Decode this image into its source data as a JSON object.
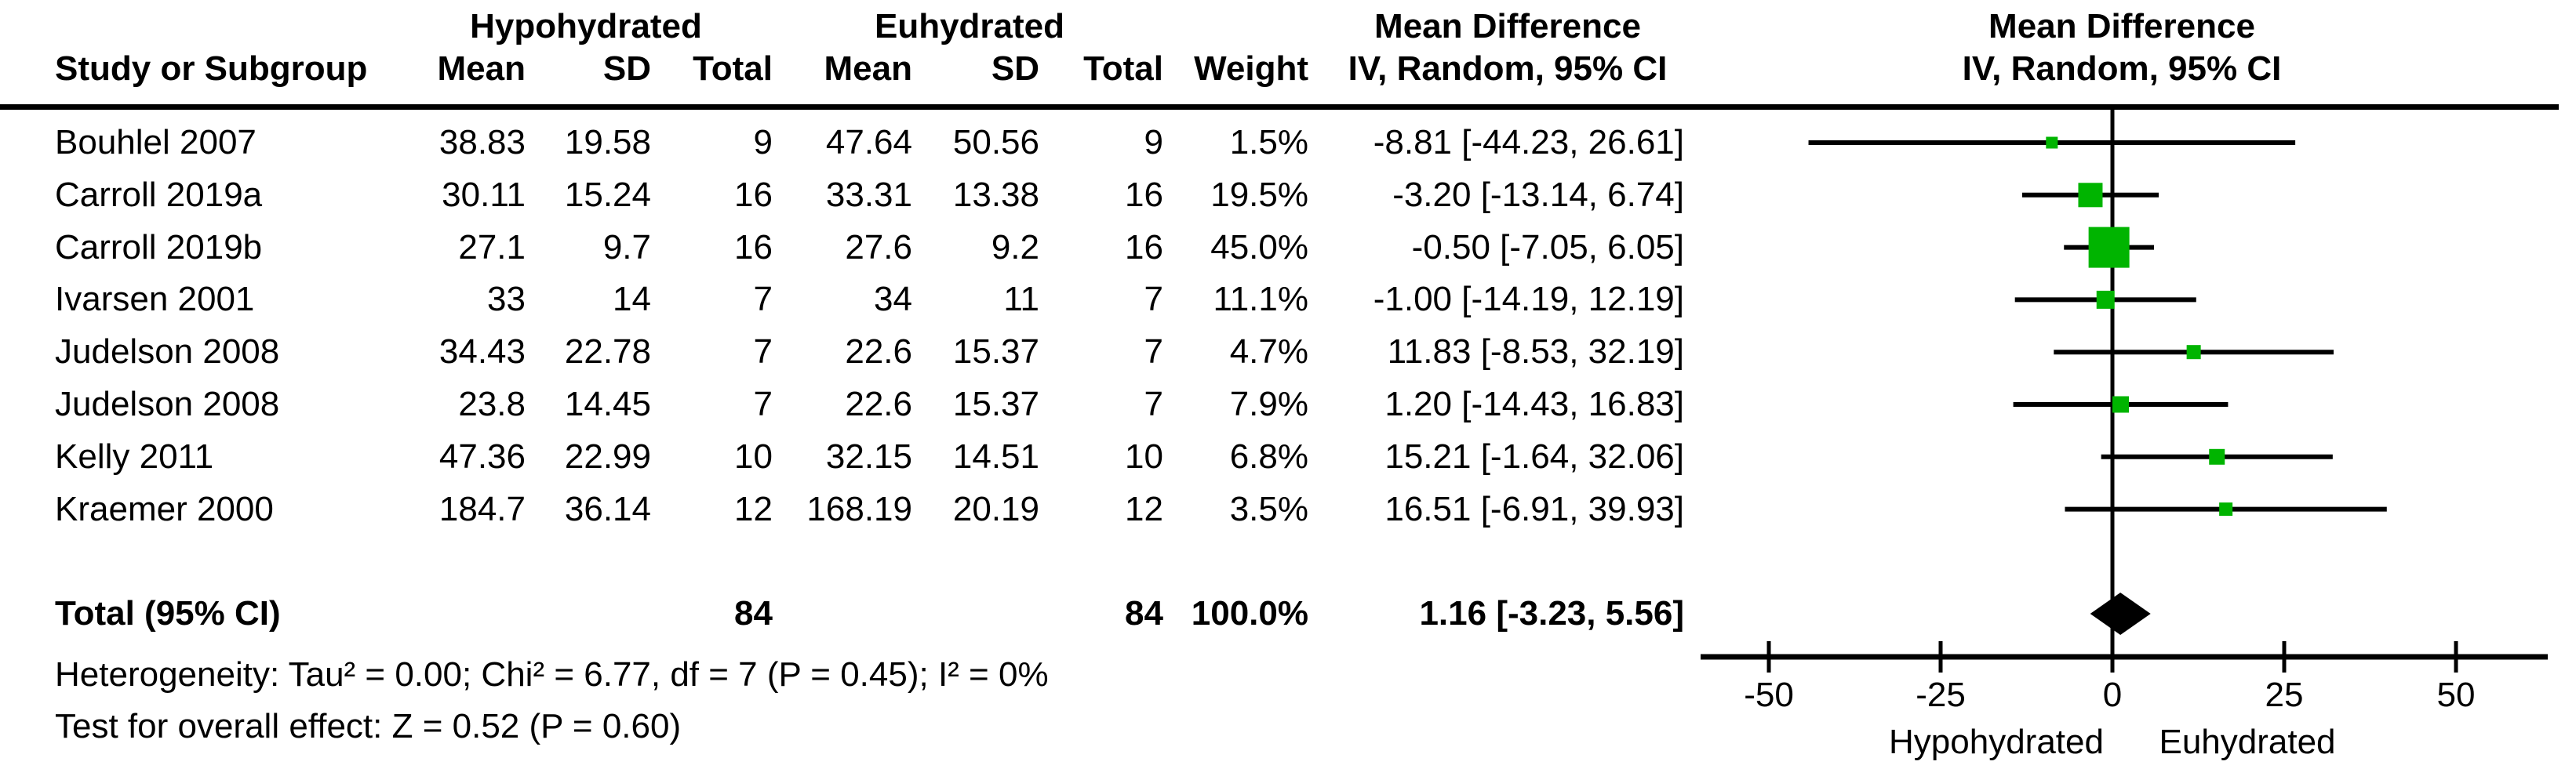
{
  "chart_data": {
    "type": "forest",
    "title_columns": {
      "group1": "Hypohydrated",
      "group2": "Euhydrated",
      "md_col_title": "Mean Difference",
      "md_col_subtitle": "IV, Random, 95% CI",
      "plot_title": "Mean Difference",
      "plot_subtitle": "IV, Random, 95% CI",
      "study": "Study or Subgroup",
      "mean": "Mean",
      "sd": "SD",
      "total": "Total",
      "weight": "Weight"
    },
    "studies": [
      {
        "name": "Bouhlel 2007",
        "h_mean": "38.83",
        "h_sd": "19.58",
        "h_total": "9",
        "e_mean": "47.64",
        "e_sd": "50.56",
        "e_total": "9",
        "weight": "1.5%",
        "md_text": "-8.81 [-44.23, 26.61]",
        "est": -8.81,
        "lo": -44.23,
        "hi": 26.61,
        "weight_val": 1.5
      },
      {
        "name": "Carroll 2019a",
        "h_mean": "30.11",
        "h_sd": "15.24",
        "h_total": "16",
        "e_mean": "33.31",
        "e_sd": "13.38",
        "e_total": "16",
        "weight": "19.5%",
        "md_text": "-3.20 [-13.14, 6.74]",
        "est": -3.2,
        "lo": -13.14,
        "hi": 6.74,
        "weight_val": 19.5
      },
      {
        "name": "Carroll 2019b",
        "h_mean": "27.1",
        "h_sd": "9.7",
        "h_total": "16",
        "e_mean": "27.6",
        "e_sd": "9.2",
        "e_total": "16",
        "weight": "45.0%",
        "md_text": "-0.50 [-7.05, 6.05]",
        "est": -0.5,
        "lo": -7.05,
        "hi": 6.05,
        "weight_val": 45.0
      },
      {
        "name": "Ivarsen 2001",
        "h_mean": "33",
        "h_sd": "14",
        "h_total": "7",
        "e_mean": "34",
        "e_sd": "11",
        "e_total": "7",
        "weight": "11.1%",
        "md_text": "-1.00 [-14.19, 12.19]",
        "est": -1.0,
        "lo": -14.19,
        "hi": 12.19,
        "weight_val": 11.1
      },
      {
        "name": "Judelson 2008",
        "h_mean": "34.43",
        "h_sd": "22.78",
        "h_total": "7",
        "e_mean": "22.6",
        "e_sd": "15.37",
        "e_total": "7",
        "weight": "4.7%",
        "md_text": "11.83 [-8.53, 32.19]",
        "est": 11.83,
        "lo": -8.53,
        "hi": 32.19,
        "weight_val": 4.7
      },
      {
        "name": "Judelson 2008",
        "h_mean": "23.8",
        "h_sd": "14.45",
        "h_total": "7",
        "e_mean": "22.6",
        "e_sd": "15.37",
        "e_total": "7",
        "weight": "7.9%",
        "md_text": "1.20 [-14.43, 16.83]",
        "est": 1.2,
        "lo": -14.43,
        "hi": 16.83,
        "weight_val": 7.9
      },
      {
        "name": "Kelly 2011",
        "h_mean": "47.36",
        "h_sd": "22.99",
        "h_total": "10",
        "e_mean": "32.15",
        "e_sd": "14.51",
        "e_total": "10",
        "weight": "6.8%",
        "md_text": "15.21 [-1.64, 32.06]",
        "est": 15.21,
        "lo": -1.64,
        "hi": 32.06,
        "weight_val": 6.8
      },
      {
        "name": "Kraemer 2000",
        "h_mean": "184.7",
        "h_sd": "36.14",
        "h_total": "12",
        "e_mean": "168.19",
        "e_sd": "20.19",
        "e_total": "12",
        "weight": "3.5%",
        "md_text": "16.51 [-6.91, 39.93]",
        "est": 16.51,
        "lo": -6.91,
        "hi": 39.93,
        "weight_val": 3.5
      }
    ],
    "total": {
      "label": "Total (95% CI)",
      "h_total": "84",
      "e_total": "84",
      "weight": "100.0%",
      "md_text": "1.16 [-3.23, 5.56]",
      "est": 1.16,
      "lo": -3.23,
      "hi": 5.56
    },
    "footer": {
      "heterogeneity": "Heterogeneity: Tau² = 0.00; Chi² = 6.77, df = 7 (P = 0.45); I² = 0%",
      "overall_effect": "Test for overall effect: Z = 0.52 (P = 0.60)"
    },
    "axis": {
      "ticks": [
        -50,
        -25,
        0,
        25,
        50
      ],
      "tick_labels": [
        "-50",
        "-25",
        "0",
        "25",
        "50"
      ],
      "xlim": [
        -60,
        62
      ],
      "left_label": "Hypohydrated",
      "right_label": "Euhydrated"
    },
    "colors": {
      "square": "#00b400",
      "line": "#000000",
      "diamond": "#000000",
      "text": "#000000"
    }
  }
}
